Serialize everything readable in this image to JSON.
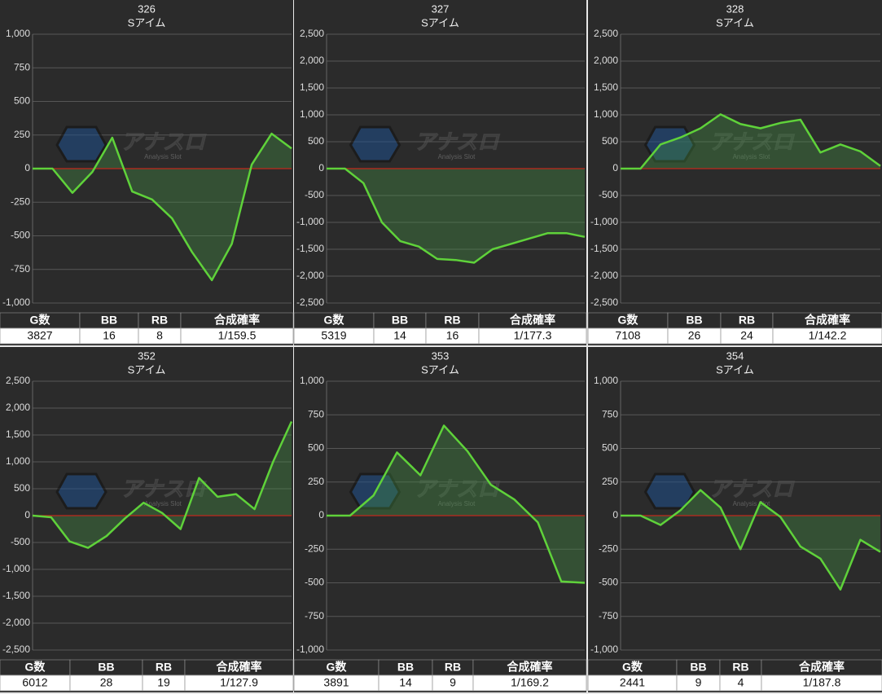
{
  "watermark": {
    "name": "アナスロ",
    "tagline": "Analysis Slot"
  },
  "chart_data": [
    {
      "type": "line",
      "title": "326",
      "subtitle": "Sアイム",
      "color": "#5fd23a",
      "values": [
        0,
        0,
        -180,
        -25,
        230,
        -170,
        -230,
        -370,
        -620,
        -830,
        -560,
        30,
        260,
        150
      ],
      "ylim": [
        -1000,
        1000
      ],
      "yticks": [
        {
          "value": -1000,
          "label": "-1,000"
        },
        -750,
        -500,
        -250,
        0,
        250,
        500,
        750,
        {
          "value": 1000,
          "label": "1,000"
        }
      ],
      "table": {
        "columns": [
          "G数",
          "BB",
          "RB",
          "合成確率"
        ],
        "rows": [
          [
            3827,
            16,
            8,
            "1/159.5"
          ]
        ]
      }
    },
    {
      "type": "line",
      "title": "327",
      "subtitle": "Sアイム",
      "color": "#5fd23a",
      "values": [
        0,
        0,
        -270,
        -1000,
        -1350,
        -1450,
        -1680,
        -1700,
        -1750,
        -1500,
        -1400,
        -1300,
        -1200,
        -1200,
        -1270
      ],
      "ylim": [
        -2500,
        2500
      ],
      "yticks": [
        {
          "value": -2500,
          "label": "-2,500"
        },
        {
          "value": -2000,
          "label": "-2,000"
        },
        {
          "value": -1500,
          "label": "-1,500"
        },
        {
          "value": -1000,
          "label": "-1,000"
        },
        -500,
        0,
        500,
        {
          "value": 1000,
          "label": "1,000"
        },
        {
          "value": 1500,
          "label": "1,500"
        },
        {
          "value": 2000,
          "label": "2,000"
        },
        {
          "value": 2500,
          "label": "2,500"
        }
      ],
      "table": {
        "columns": [
          "G数",
          "BB",
          "RB",
          "合成確率"
        ],
        "rows": [
          [
            5319,
            14,
            16,
            "1/177.3"
          ]
        ]
      }
    },
    {
      "type": "line",
      "title": "328",
      "subtitle": "Sアイム",
      "color": "#5fd23a",
      "values": [
        0,
        0,
        450,
        580,
        750,
        1010,
        830,
        750,
        850,
        910,
        300,
        450,
        320,
        50
      ],
      "ylim": [
        -2500,
        2500
      ],
      "yticks": [
        {
          "value": -2500,
          "label": "-2,500"
        },
        {
          "value": -2000,
          "label": "-2,000"
        },
        {
          "value": -1500,
          "label": "-1,500"
        },
        {
          "value": -1000,
          "label": "-1,000"
        },
        -500,
        0,
        500,
        {
          "value": 1000,
          "label": "1,000"
        },
        {
          "value": 1500,
          "label": "1,500"
        },
        {
          "value": 2000,
          "label": "2,000"
        },
        {
          "value": 2500,
          "label": "2,500"
        }
      ],
      "table": {
        "columns": [
          "G数",
          "BB",
          "RB",
          "合成確率"
        ],
        "rows": [
          [
            7108,
            26,
            24,
            "1/142.2"
          ]
        ]
      }
    },
    {
      "type": "line",
      "title": "352",
      "subtitle": "Sアイム",
      "color": "#5fd23a",
      "values": [
        0,
        -30,
        -480,
        -600,
        -380,
        -50,
        240,
        50,
        -250,
        700,
        350,
        400,
        120,
        1000,
        1750
      ],
      "ylim": [
        -2500,
        2500
      ],
      "yticks": [
        {
          "value": -2500,
          "label": "-2,500"
        },
        {
          "value": -2000,
          "label": "-2,000"
        },
        {
          "value": -1500,
          "label": "-1,500"
        },
        {
          "value": -1000,
          "label": "-1,000"
        },
        -500,
        0,
        500,
        {
          "value": 1000,
          "label": "1,000"
        },
        {
          "value": 1500,
          "label": "1,500"
        },
        {
          "value": 2000,
          "label": "2,000"
        },
        {
          "value": 2500,
          "label": "2,500"
        }
      ],
      "table": {
        "columns": [
          "G数",
          "BB",
          "RB",
          "合成確率"
        ],
        "rows": [
          [
            6012,
            28,
            19,
            "1/127.9"
          ]
        ]
      }
    },
    {
      "type": "line",
      "title": "353",
      "subtitle": "Sアイム",
      "color": "#5fd23a",
      "values": [
        0,
        0,
        150,
        470,
        300,
        670,
        480,
        230,
        120,
        -50,
        -490,
        -500
      ],
      "ylim": [
        -1000,
        1000
      ],
      "yticks": [
        {
          "value": -1000,
          "label": "-1,000"
        },
        -750,
        -500,
        -250,
        0,
        250,
        500,
        750,
        {
          "value": 1000,
          "label": "1,000"
        }
      ],
      "table": {
        "columns": [
          "G数",
          "BB",
          "RB",
          "合成確率"
        ],
        "rows": [
          [
            3891,
            14,
            9,
            "1/169.2"
          ]
        ]
      }
    },
    {
      "type": "line",
      "title": "354",
      "subtitle": "Sアイム",
      "color": "#5fd23a",
      "values": [
        0,
        0,
        -70,
        40,
        190,
        60,
        -250,
        100,
        -10,
        -230,
        -320,
        -550,
        -180,
        -270
      ],
      "ylim": [
        -1000,
        1000
      ],
      "yticks": [
        {
          "value": -1000,
          "label": "-1,000"
        },
        -750,
        -500,
        -250,
        0,
        250,
        500,
        750,
        {
          "value": 1000,
          "label": "1,000"
        }
      ],
      "table": {
        "columns": [
          "G数",
          "BB",
          "RB",
          "合成確率"
        ],
        "rows": [
          [
            2441,
            9,
            4,
            "1/187.8"
          ]
        ]
      }
    }
  ]
}
